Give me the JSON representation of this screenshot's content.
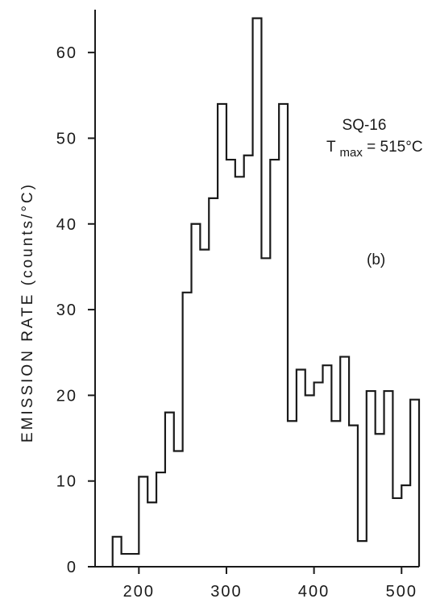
{
  "chart_data": {
    "type": "line",
    "step": "histogram",
    "title": "",
    "xlabel": "",
    "ylabel": "EMISSION  RATE  (counts/°C)",
    "xlim": [
      150,
      520
    ],
    "ylim": [
      0,
      65
    ],
    "xticks": [
      200,
      300,
      400,
      500
    ],
    "yticks": [
      0,
      10,
      20,
      30,
      40,
      50,
      60
    ],
    "grid": false,
    "legend": "none",
    "bin_width": 10,
    "bins": [
      {
        "x0": 170,
        "x1": 180,
        "y": 3.5
      },
      {
        "x0": 180,
        "x1": 190,
        "y": 1.5
      },
      {
        "x0": 190,
        "x1": 200,
        "y": 1.5
      },
      {
        "x0": 200,
        "x1": 210,
        "y": 10.5
      },
      {
        "x0": 210,
        "x1": 220,
        "y": 7.5
      },
      {
        "x0": 220,
        "x1": 230,
        "y": 11
      },
      {
        "x0": 230,
        "x1": 240,
        "y": 18
      },
      {
        "x0": 240,
        "x1": 250,
        "y": 13.5
      },
      {
        "x0": 250,
        "x1": 260,
        "y": 32
      },
      {
        "x0": 260,
        "x1": 270,
        "y": 40
      },
      {
        "x0": 270,
        "x1": 280,
        "y": 37
      },
      {
        "x0": 280,
        "x1": 290,
        "y": 43
      },
      {
        "x0": 290,
        "x1": 300,
        "y": 54
      },
      {
        "x0": 300,
        "x1": 310,
        "y": 47.5
      },
      {
        "x0": 310,
        "x1": 320,
        "y": 45.5
      },
      {
        "x0": 320,
        "x1": 330,
        "y": 48
      },
      {
        "x0": 330,
        "x1": 340,
        "y": 64
      },
      {
        "x0": 340,
        "x1": 350,
        "y": 36
      },
      {
        "x0": 350,
        "x1": 360,
        "y": 47.5
      },
      {
        "x0": 360,
        "x1": 370,
        "y": 54
      },
      {
        "x0": 370,
        "x1": 380,
        "y": 17
      },
      {
        "x0": 380,
        "x1": 390,
        "y": 23
      },
      {
        "x0": 390,
        "x1": 400,
        "y": 20
      },
      {
        "x0": 400,
        "x1": 410,
        "y": 21.5
      },
      {
        "x0": 410,
        "x1": 420,
        "y": 23.5
      },
      {
        "x0": 420,
        "x1": 430,
        "y": 17
      },
      {
        "x0": 430,
        "x1": 440,
        "y": 24.5
      },
      {
        "x0": 440,
        "x1": 450,
        "y": 16.5
      },
      {
        "x0": 450,
        "x1": 460,
        "y": 3
      },
      {
        "x0": 460,
        "x1": 470,
        "y": 20.5
      },
      {
        "x0": 470,
        "x1": 480,
        "y": 15.5
      },
      {
        "x0": 480,
        "x1": 490,
        "y": 20.5
      },
      {
        "x0": 490,
        "x1": 500,
        "y": 8
      },
      {
        "x0": 500,
        "x1": 510,
        "y": 9.5
      },
      {
        "x0": 510,
        "x1": 520,
        "y": 19.5
      }
    ],
    "annotations": [
      {
        "id": "sample",
        "text": "SQ-16"
      },
      {
        "id": "tmax",
        "text": "T",
        "sub": "max",
        "rest": "= 515°C"
      },
      {
        "id": "panel",
        "text": "(b)"
      }
    ]
  },
  "colors": {
    "ink": "#1a1a1a",
    "background": "#ffffff"
  }
}
